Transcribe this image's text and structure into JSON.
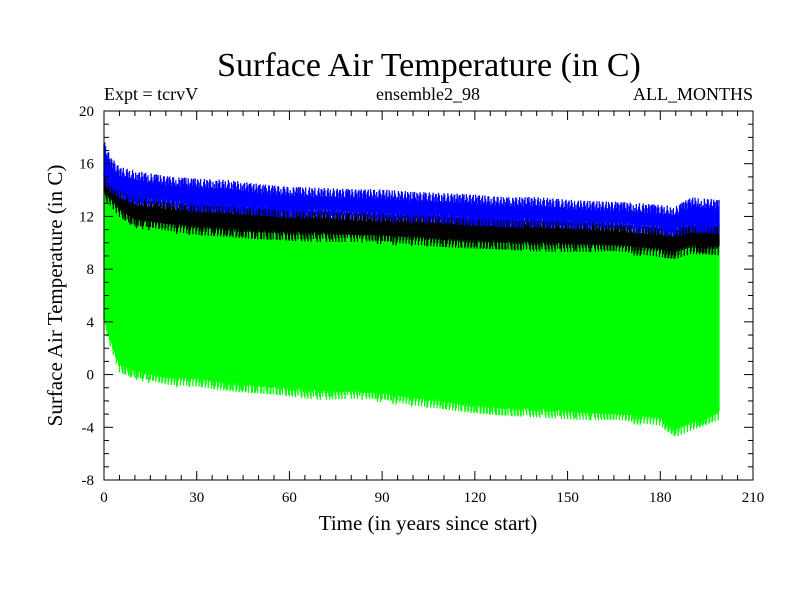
{
  "chart_data": {
    "type": "line",
    "title": "Surface Air Temperature (in C)",
    "subtitle_left": "Expt = tcrvV",
    "subtitle_center": "ensemble2_98",
    "subtitle_right": "ALL_MONTHS",
    "xlabel": "Time (in years since start)",
    "ylabel": "Surface Air Temperature (in C)",
    "xlim": [
      0,
      210
    ],
    "ylim": [
      -8,
      20
    ],
    "x_ticks": [
      0,
      30,
      60,
      90,
      120,
      150,
      180,
      210
    ],
    "y_ticks": [
      -8,
      -4,
      0,
      4,
      8,
      12,
      16,
      20
    ],
    "grid": false,
    "legend": "none",
    "x_range_data": [
      0,
      199
    ],
    "series": [
      {
        "color": "#0000ff",
        "description_mark": "upper envelope",
        "x": [
          0,
          2,
          5,
          10,
          20,
          30,
          40,
          50,
          60,
          70,
          80,
          90,
          100,
          110,
          120,
          130,
          140,
          150,
          160,
          170,
          180,
          185,
          190,
          199
        ],
        "upper": [
          17.5,
          16.3,
          15.5,
          15.2,
          14.8,
          14.6,
          14.5,
          14.2,
          14.0,
          13.9,
          13.8,
          13.8,
          13.6,
          13.5,
          13.4,
          13.2,
          13.2,
          13.0,
          12.9,
          12.8,
          12.6,
          12.5,
          13.2,
          13.0
        ],
        "lower": [
          14.8,
          14.2,
          13.7,
          13.2,
          13.0,
          12.7,
          12.7,
          12.5,
          12.3,
          12.3,
          12.1,
          12.0,
          11.9,
          11.9,
          11.7,
          11.6,
          11.6,
          11.4,
          11.3,
          11.2,
          11.0,
          10.9,
          11.2,
          11.1
        ]
      },
      {
        "color": "#000000",
        "description_mark": "annual mean band",
        "x": [
          0,
          2,
          5,
          10,
          20,
          30,
          40,
          50,
          60,
          70,
          80,
          90,
          100,
          110,
          120,
          130,
          140,
          150,
          160,
          170,
          180,
          185,
          190,
          199
        ],
        "upper": [
          15.2,
          14.8,
          13.9,
          13.3,
          13.0,
          12.8,
          12.7,
          12.5,
          12.4,
          12.3,
          12.1,
          12.1,
          12.0,
          11.9,
          11.8,
          11.7,
          11.6,
          11.5,
          11.4,
          11.2,
          11.0,
          10.9,
          11.3,
          11.2
        ],
        "lower": [
          13.5,
          13.2,
          12.3,
          11.5,
          11.2,
          11.0,
          10.9,
          10.7,
          10.6,
          10.5,
          10.4,
          10.3,
          10.2,
          10.1,
          10.0,
          9.9,
          9.8,
          9.7,
          9.6,
          9.5,
          9.3,
          9.2,
          9.6,
          9.5
        ]
      },
      {
        "color": "#00ff00",
        "description_mark": "lower envelope",
        "x": [
          0,
          2,
          5,
          10,
          20,
          30,
          40,
          50,
          60,
          70,
          80,
          90,
          100,
          110,
          120,
          130,
          140,
          150,
          160,
          170,
          180,
          185,
          190,
          199
        ],
        "upper": [
          14.0,
          13.8,
          12.5,
          12.2,
          11.8,
          11.5,
          11.4,
          11.2,
          11.0,
          10.9,
          10.8,
          10.7,
          10.6,
          10.5,
          10.4,
          10.2,
          10.1,
          10.0,
          9.9,
          9.8,
          9.6,
          9.5,
          10.2,
          10.0
        ],
        "lower": [
          4.0,
          2.5,
          0.5,
          0.0,
          -0.5,
          -0.5,
          -0.8,
          -1.0,
          -1.2,
          -1.5,
          -1.5,
          -1.7,
          -2.0,
          -2.2,
          -2.5,
          -2.7,
          -2.8,
          -3.0,
          -3.2,
          -3.3,
          -3.5,
          -4.3,
          -3.8,
          -3.0
        ]
      }
    ]
  }
}
